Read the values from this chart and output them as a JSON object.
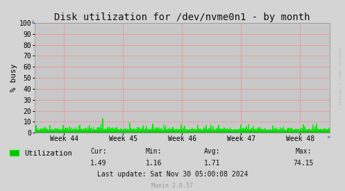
{
  "title": "Disk utilization for /dev/nvme0n1 - by month",
  "ylabel": "% busy",
  "bg_color": "#d4d4d4",
  "plot_bg_color": "#aaaaaa",
  "grid_color": "#ff8080",
  "line_color": "#00ee00",
  "fill_color": "#00bb00",
  "ylim": [
    0,
    100
  ],
  "yticks": [
    0,
    10,
    20,
    30,
    40,
    50,
    60,
    70,
    80,
    90,
    100
  ],
  "week_labels": [
    "Week 44",
    "Week 45",
    "Week 46",
    "Week 47",
    "Week 48"
  ],
  "legend_label": "Utilization",
  "cur_val": "1.49",
  "min_val": "1.16",
  "avg_val": "1.71",
  "max_val": "74.15",
  "last_update": "Last update: Sat Nov 30 05:00:08 2024",
  "munin_label": "Munin 2.0.57",
  "rrdtool_label": "RRDTOOL / TOBI OETIKER",
  "title_fontsize": 10,
  "axis_fontsize": 7,
  "legend_fontsize": 7.5,
  "stats_fontsize": 7,
  "num_points": 2000
}
